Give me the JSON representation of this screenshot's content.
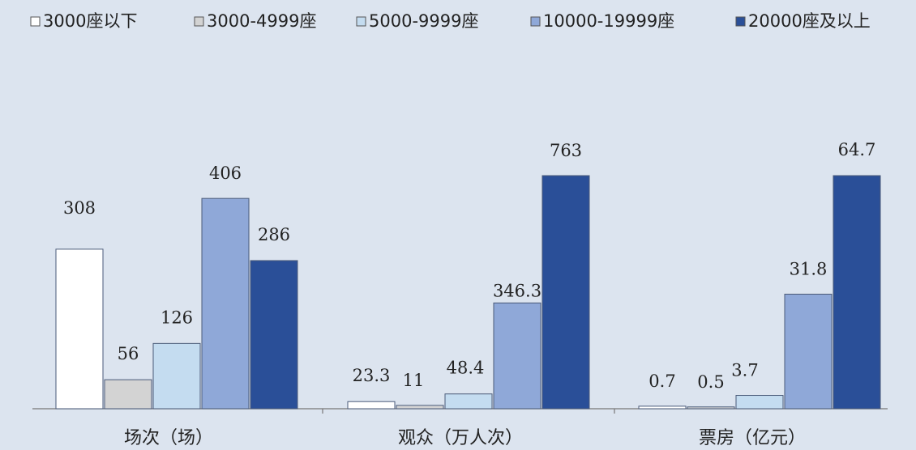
{
  "chart_data": {
    "type": "bar",
    "series": [
      {
        "name": "3000座以下",
        "color": "#ffffff"
      },
      {
        "name": "3000-4999座",
        "color": "#d3d3d3"
      },
      {
        "name": "5000-9999座",
        "color": "#c4dcf0"
      },
      {
        "name": "10000-19999座",
        "color": "#8fa8d8"
      },
      {
        "name": "20000座及以上",
        "color": "#2a4f98"
      }
    ],
    "groups": [
      {
        "label": "场次（场）",
        "values": [
          308,
          56,
          126,
          406,
          286
        ],
        "labels": [
          "308",
          "56",
          "126",
          "406",
          "286"
        ],
        "max": 450
      },
      {
        "label": "观众（万人次）",
        "values": [
          23.3,
          11,
          48.4,
          346.3,
          763
        ],
        "labels": [
          "23.3",
          "11",
          "48.4",
          "346.3",
          "763"
        ],
        "max": 763
      },
      {
        "label": "票房（亿元）",
        "values": [
          0.7,
          0.5,
          3.7,
          31.8,
          64.7
        ],
        "labels": [
          "0.7",
          "0.5",
          "3.7",
          "31.8",
          "64.7"
        ],
        "max": 64.7
      }
    ],
    "legend_position": "top",
    "grid": false
  }
}
